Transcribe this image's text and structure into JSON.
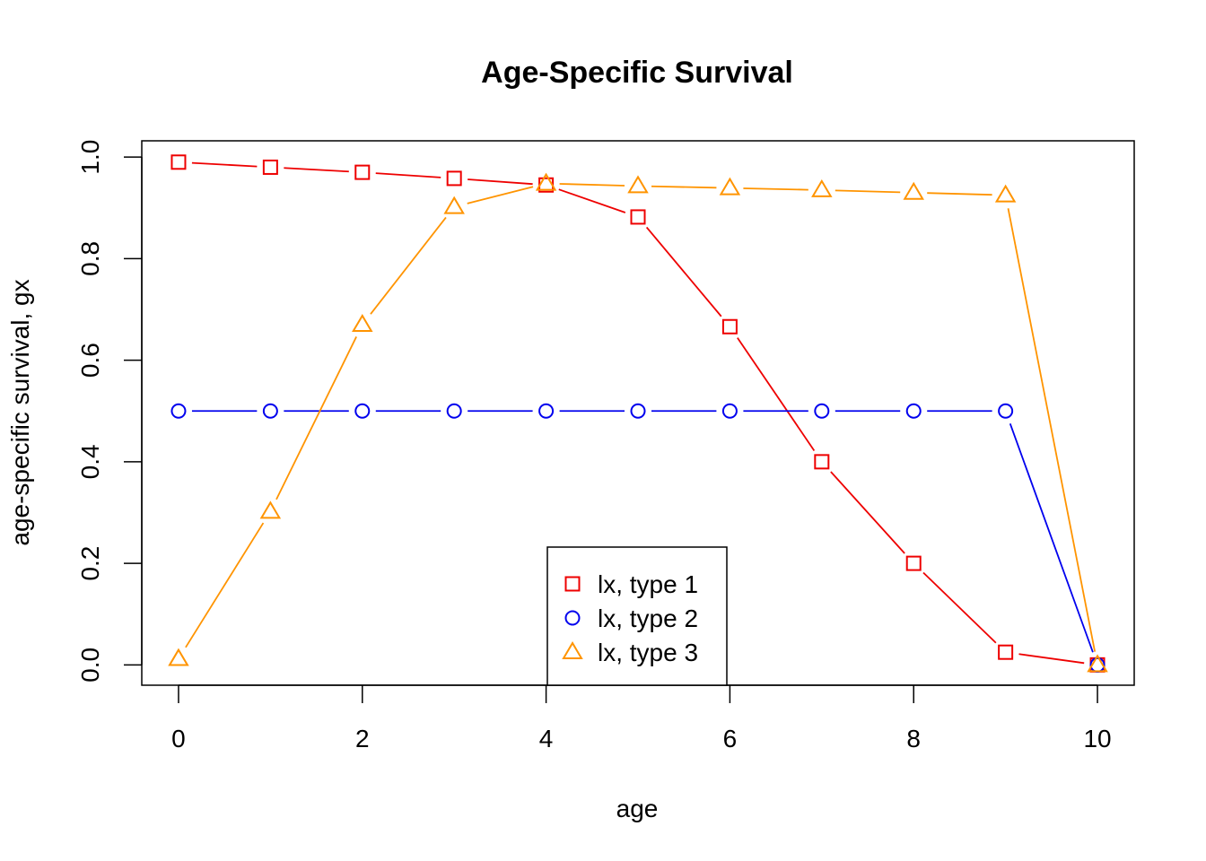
{
  "chart_data": {
    "type": "line",
    "title": "Age-Specific Survival",
    "xlabel": "age",
    "ylabel": "age-specific survival, gx",
    "x": [
      0,
      1,
      2,
      3,
      4,
      5,
      6,
      7,
      8,
      9,
      10
    ],
    "xlim": [
      -0.4,
      10.4
    ],
    "ylim": [
      -0.04,
      1.032
    ],
    "xticks": [
      0,
      2,
      4,
      6,
      8,
      10
    ],
    "xtick_labels": [
      "0",
      "2",
      "4",
      "6",
      "8",
      "10"
    ],
    "yticks": [
      0.0,
      0.2,
      0.4,
      0.6,
      0.8,
      1.0
    ],
    "ytick_labels": [
      "0.0",
      "0.2",
      "0.4",
      "0.6",
      "0.8",
      "1.0"
    ],
    "grid": false,
    "legend_position": "bottom-center",
    "series": [
      {
        "name": "lx, type 1",
        "color": "#ee0000",
        "marker": "square",
        "values": [
          0.99,
          0.98,
          0.97,
          0.958,
          0.945,
          0.882,
          0.666,
          0.4,
          0.2,
          0.025,
          0.0
        ]
      },
      {
        "name": "lx, type 2",
        "color": "#0000ee",
        "marker": "circle",
        "values": [
          0.5,
          0.5,
          0.5,
          0.5,
          0.5,
          0.5,
          0.5,
          0.5,
          0.5,
          0.5,
          0.0
        ]
      },
      {
        "name": "lx, type 3",
        "color": "#ff9400",
        "marker": "triangle",
        "values": [
          0.012,
          0.302,
          0.67,
          0.902,
          0.948,
          0.943,
          0.939,
          0.935,
          0.93,
          0.925,
          0.0
        ]
      }
    ]
  }
}
